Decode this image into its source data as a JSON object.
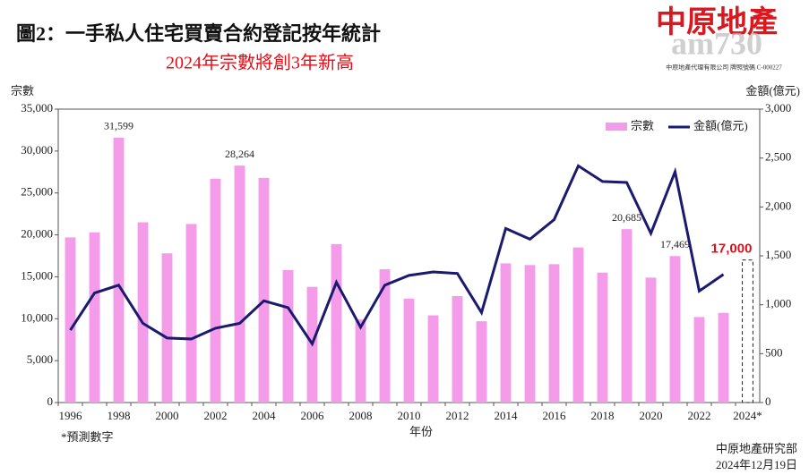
{
  "chart_data": {
    "type": "bar-line",
    "title": "圖2：一手私人住宅買賣合約登記按年統計",
    "subtitle": "2024年宗數將創3年新高",
    "y_label": "宗數",
    "y2_label": "金額(億元)",
    "x_label": "年份",
    "footnote": "*預測數字",
    "source": "中原地產研究部",
    "date": "2024年12月19日",
    "logo": "中原地產",
    "logo_note": "中原地產代理有限公司 牌照號碼 C-000227",
    "watermark": "am730",
    "categories": [
      "1996",
      null,
      "1998",
      null,
      "2000",
      null,
      "2002",
      null,
      "2004",
      null,
      "2006",
      null,
      "2008",
      null,
      "2010",
      null,
      "2012",
      null,
      "2014",
      null,
      "2016",
      null,
      "2018",
      null,
      "2020",
      null,
      "2022",
      null,
      "2024*"
    ],
    "series": [
      {
        "name": "宗數",
        "color": "#f49cea",
        "type": "bar",
        "values": [
          19700,
          20300,
          31599,
          21500,
          17800,
          21300,
          26700,
          28264,
          26800,
          15800,
          13800,
          18900,
          9900,
          15900,
          12400,
          10400,
          12700,
          9700,
          16600,
          16400,
          16500,
          18500,
          15500,
          20685,
          14900,
          17469,
          10200,
          10700,
          17000
        ],
        "value_labels": [
          null,
          null,
          "31,599",
          null,
          null,
          null,
          null,
          "28,264",
          null,
          null,
          null,
          null,
          null,
          null,
          null,
          null,
          null,
          null,
          null,
          null,
          null,
          null,
          null,
          "20,685",
          null,
          "17,469",
          null,
          null,
          "17,000"
        ]
      },
      {
        "name": "金額(億元)",
        "color": "#1a1a6e",
        "type": "line",
        "axis": "y2",
        "values": [
          740,
          1120,
          1200,
          810,
          660,
          650,
          760,
          810,
          1040,
          970,
          600,
          1230,
          770,
          1200,
          1300,
          1335,
          1320,
          920,
          1780,
          1670,
          1870,
          2420,
          2260,
          2250,
          1730,
          2360,
          1140,
          1310,
          null
        ]
      }
    ],
    "ylim": [
      0,
      35000
    ],
    "yticks": [
      0,
      {
        "value": 5000,
        "label": "5,000"
      },
      {
        "value": 10000,
        "label": "10,000"
      },
      {
        "value": 15000,
        "label": "15,000"
      },
      {
        "value": 20000,
        "label": "20,000"
      },
      {
        "value": 25000,
        "label": "25,000"
      },
      {
        "value": 30000,
        "label": "30,000"
      },
      {
        "value": 35000,
        "label": "35,000"
      }
    ],
    "y2lim": [
      0,
      3000
    ],
    "y2ticks": [
      0,
      500,
      {
        "value": 1000,
        "label": "1,000"
      },
      {
        "value": 1500,
        "label": "1,500"
      },
      {
        "value": 2000,
        "label": "2,000"
      },
      {
        "value": 2500,
        "label": "2,500"
      },
      {
        "value": 3000,
        "label": "3,000"
      }
    ],
    "grid": false,
    "legend": "top-right"
  }
}
